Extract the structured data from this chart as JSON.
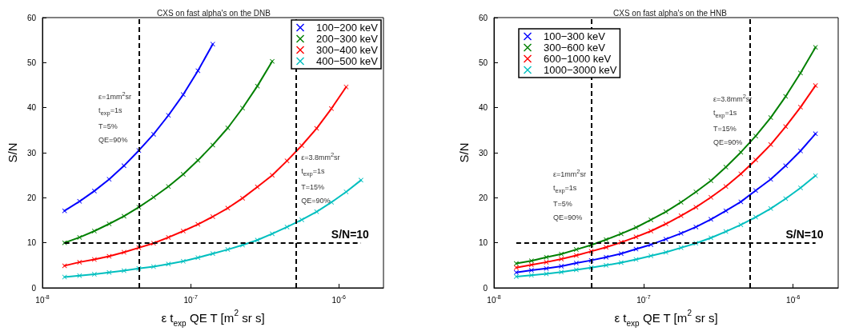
{
  "chart_data": [
    {
      "type": "line",
      "title": "CXS on fast alpha's on the DNB",
      "xlabel": "ε t$_{exp}$ QE T [m$^{2}$ sr s]",
      "ylabel": "S/N",
      "log": "x",
      "marker": "cross",
      "line_style": "solid",
      "grid": false,
      "legend": "top right",
      "xlim": [
        1e-08,
        2e-06
      ],
      "xticks": [
        {
          "value": 1e-08,
          "label": "10$^{-8}$"
        },
        {
          "value": 1e-07,
          "label": "10$^{-7}$"
        },
        {
          "value": 1e-06,
          "label": "10$^{-6}$"
        }
      ],
      "ylim": [
        0,
        60
      ],
      "yticks": [
        0,
        10,
        20,
        30,
        40,
        50,
        60
      ],
      "annotations": [
        "ε=1mm$^{2}$sr\nt$_{exp}$=1s\nT=5%\nQE=90%",
        "ε=3.8mm$^{2}$sr\nt$_{exp}$=1s\nT=15%\nQE=90%"
      ],
      "x": [
        1.41e-08,
        1.78e-08,
        2.24e-08,
        2.82e-08,
        3.55e-08,
        4.47e-08,
        5.62e-08,
        7.08e-08,
        8.91e-08,
        1.12e-07,
        1.41e-07,
        1.78e-07,
        2.24e-07,
        2.82e-07,
        3.55e-07,
        4.47e-07,
        5.62e-07,
        7.08e-07,
        8.91e-07,
        1.12e-06,
        1.41e-06
      ],
      "series": [
        {
          "name": "100−200 keV",
          "color": "#0000ff",
          "values": [
            17.1,
            19.2,
            21.5,
            24.1,
            27.1,
            30.5,
            34.1,
            38.3,
            42.9,
            48.2,
            54.1,
            null,
            null,
            null,
            null,
            null,
            null,
            null,
            null,
            null,
            null
          ]
        },
        {
          "name": "200−300 keV",
          "color": "#008000",
          "values": [
            10.0,
            11.2,
            12.6,
            14.2,
            15.9,
            17.9,
            20.1,
            22.5,
            25.2,
            28.3,
            31.7,
            35.5,
            39.9,
            44.8,
            50.3,
            null,
            null,
            null,
            null,
            null,
            null
          ]
        },
        {
          "name": "300−400 keV",
          "color": "#ff0000",
          "values": [
            4.9,
            5.7,
            6.3,
            7.0,
            7.9,
            8.9,
            9.9,
            11.2,
            12.6,
            14.1,
            15.8,
            17.7,
            19.9,
            22.4,
            25.0,
            28.2,
            31.6,
            35.4,
            39.8,
            44.6,
            null
          ]
        },
        {
          "name": "400−500 keV",
          "color": "#00bfbf",
          "values": [
            2.4,
            2.7,
            3.0,
            3.4,
            3.8,
            4.3,
            4.7,
            5.3,
            5.9,
            6.7,
            7.6,
            8.5,
            9.5,
            10.6,
            12.0,
            13.5,
            15.1,
            16.9,
            19.0,
            21.3,
            23.9
          ]
        }
      ],
      "ref_lines": [
        {
          "axis": "x",
          "value": 4.5e-08,
          "color": "#000000",
          "line_style": "dashed"
        },
        {
          "axis": "x",
          "value": 5.13e-07,
          "color": "#000000",
          "line_style": "dashed"
        },
        {
          "axis": "y",
          "value": 10,
          "label": "S/N=10",
          "color": "#000000",
          "line_style": "dashed"
        }
      ]
    },
    {
      "type": "line",
      "title": "CXS on fast alpha's on the HNB",
      "xlabel": "ε t$_{exp}$ QE T [m$^{2}$ sr s]",
      "ylabel": "S/N",
      "log": "x",
      "marker": "cross",
      "line_style": "solid",
      "grid": false,
      "legend": "top left",
      "xlim": [
        1e-08,
        2e-06
      ],
      "xticks": [
        {
          "value": 1e-08,
          "label": "10$^{-8}$"
        },
        {
          "value": 1e-07,
          "label": "10$^{-7}$"
        },
        {
          "value": 1e-06,
          "label": "10$^{-6}$"
        }
      ],
      "ylim": [
        0,
        60
      ],
      "yticks": [
        0,
        10,
        20,
        30,
        40,
        50,
        60
      ],
      "annotations": [
        "ε=1mm$^{2}$sr\nt$_{exp}$=1s\nT=5%\nQE=90%",
        "ε=3.8mm$^{2}$sr\nt$_{exp}$=1s\nT=15%\nQE=90%"
      ],
      "x": [
        1.41e-08,
        1.78e-08,
        2.24e-08,
        2.82e-08,
        3.55e-08,
        4.47e-08,
        5.62e-08,
        7.08e-08,
        8.91e-08,
        1.12e-07,
        1.41e-07,
        1.78e-07,
        2.24e-07,
        2.82e-07,
        3.55e-07,
        4.47e-07,
        5.62e-07,
        7.08e-07,
        8.91e-07,
        1.12e-06,
        1.41e-06
      ],
      "series": [
        {
          "name": "100−300 keV",
          "color": "#0000ff",
          "values": [
            3.4,
            3.9,
            4.3,
            4.8,
            5.5,
            6.1,
            6.8,
            7.6,
            8.6,
            9.6,
            10.8,
            12.1,
            13.5,
            15.2,
            17.1,
            19.1,
            21.6,
            24.1,
            27.1,
            30.4,
            34.2
          ]
        },
        {
          "name": "300−600 keV",
          "color": "#008000",
          "values": [
            5.4,
            6.0,
            6.8,
            7.5,
            8.5,
            9.5,
            10.7,
            12.0,
            13.4,
            15.1,
            16.9,
            19.0,
            21.3,
            23.8,
            26.8,
            30.1,
            33.7,
            37.8,
            42.5,
            47.7,
            53.4
          ]
        },
        {
          "name": "600−1000 keV",
          "color": "#ff0000",
          "values": [
            4.5,
            5.1,
            5.7,
            6.4,
            7.2,
            8.1,
            9.0,
            10.1,
            11.3,
            12.6,
            14.2,
            16.0,
            17.9,
            20.1,
            22.5,
            25.3,
            28.4,
            31.8,
            35.8,
            40.1,
            44.9
          ]
        },
        {
          "name": "1000−3000 keV",
          "color": "#00bfbf",
          "values": [
            2.5,
            2.8,
            3.1,
            3.5,
            4.0,
            4.5,
            5.0,
            5.6,
            6.3,
            7.1,
            7.9,
            8.9,
            9.9,
            11.1,
            12.5,
            14.0,
            15.7,
            17.6,
            19.8,
            22.2,
            24.9
          ]
        }
      ],
      "ref_lines": [
        {
          "axis": "x",
          "value": 4.5e-08,
          "color": "#000000",
          "line_style": "dashed"
        },
        {
          "axis": "x",
          "value": 5.13e-07,
          "color": "#000000",
          "line_style": "dashed"
        },
        {
          "axis": "y",
          "value": 10,
          "label": "S/N=10",
          "color": "#000000",
          "line_style": "dashed"
        }
      ]
    }
  ]
}
